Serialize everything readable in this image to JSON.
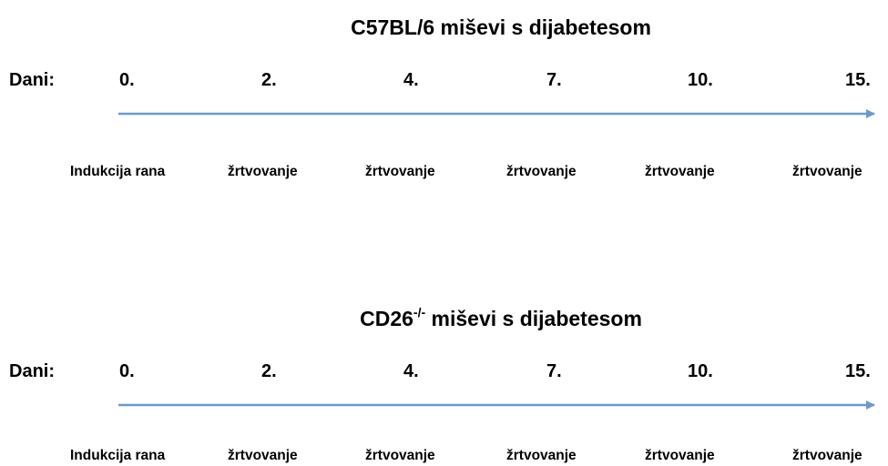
{
  "timelines": [
    {
      "title": {
        "prefix": "C57BL/6 miševi s dijabetesom"
      },
      "label": "Dani:",
      "days": [
        "0.",
        "2.",
        "4.",
        "7.",
        "10.",
        "15."
      ],
      "events": [
        "Indukcija rana",
        "žrtvovanje",
        "žrtvovanje",
        "žrtvovanje",
        "žrtvovanje",
        "žrtvovanje"
      ]
    },
    {
      "title": {
        "prefix": "CD26",
        "sup": "-/-",
        "suffix": " miševi s dijabetesom"
      },
      "label": "Dani:",
      "days": [
        "0.",
        "2.",
        "4.",
        "7.",
        "10.",
        "15."
      ],
      "events": [
        "Indukcija rana",
        "žrtvovanje",
        "žrtvovanje",
        "žrtvovanje",
        "žrtvovanje",
        "žrtvovanje"
      ]
    }
  ]
}
